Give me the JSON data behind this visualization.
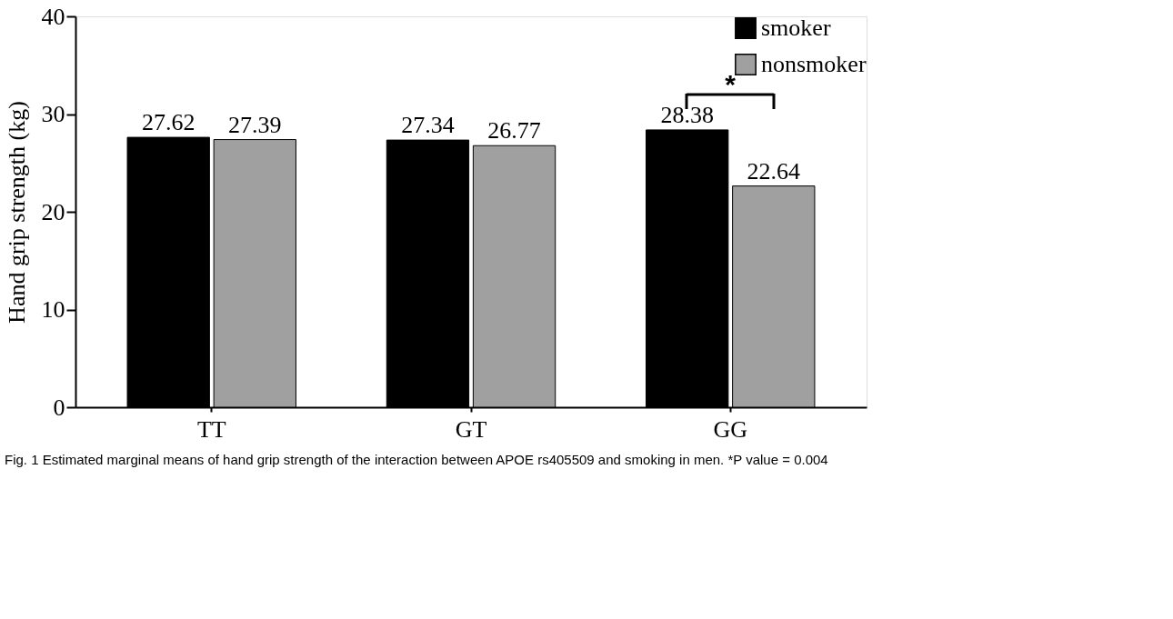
{
  "chart_data": {
    "type": "bar",
    "ylabel": "Hand grip strength (kg)",
    "categories": [
      "TT",
      "GT",
      "GG"
    ],
    "series": [
      {
        "name": "smoker",
        "color": "#000000",
        "values": [
          27.62,
          27.34,
          28.38
        ]
      },
      {
        "name": "nonsmoker",
        "color": "#a0a0a0",
        "values": [
          27.39,
          26.77,
          22.64
        ]
      }
    ],
    "ylim": [
      0,
      40
    ],
    "yticks": [
      0,
      10,
      20,
      30,
      40
    ],
    "grid": false,
    "legend": "top right",
    "data_labels": true,
    "annotations": [
      "*",
      "Fig. 1 Estimated marginal means of hand grip strength of the interaction between APOE rs405509 and smoking in men. *P value = 0.004"
    ]
  }
}
